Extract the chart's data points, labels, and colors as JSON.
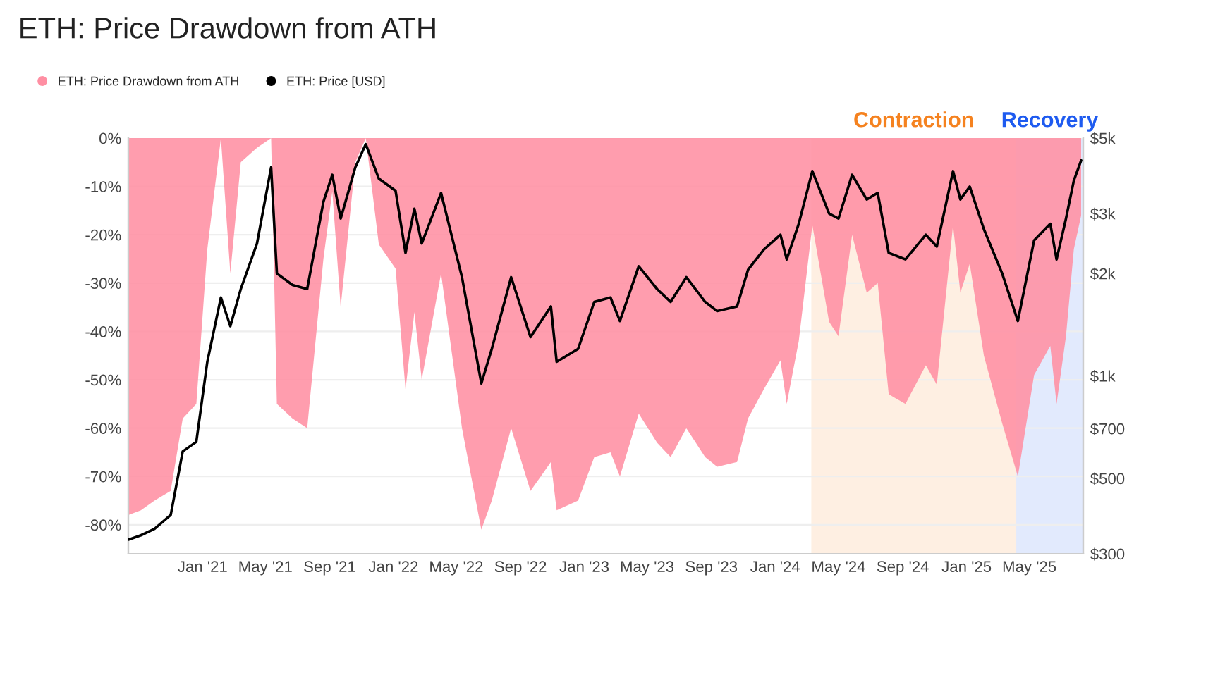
{
  "chart_data": {
    "type": "area",
    "title": "ETH: Price Drawdown from ATH",
    "x": [
      "2020-08-12",
      "2020-09-05",
      "2020-10-01",
      "2020-11-01",
      "2020-11-24",
      "2020-12-20",
      "2021-01-10",
      "2021-02-05",
      "2021-02-23",
      "2021-03-15",
      "2021-04-15",
      "2021-05-12",
      "2021-05-23",
      "2021-06-22",
      "2021-07-20",
      "2021-08-20",
      "2021-09-06",
      "2021-09-22",
      "2021-10-20",
      "2021-11-09",
      "2021-12-04",
      "2022-01-05",
      "2022-01-24",
      "2022-02-10",
      "2022-02-24",
      "2022-04-02",
      "2022-05-12",
      "2022-06-18",
      "2022-07-08",
      "2022-08-14",
      "2022-09-20",
      "2022-10-29",
      "2022-11-09",
      "2022-12-20",
      "2023-01-20",
      "2023-02-20",
      "2023-03-10",
      "2023-04-15",
      "2023-05-20",
      "2023-06-15",
      "2023-07-15",
      "2023-08-20",
      "2023-09-12",
      "2023-10-20",
      "2023-11-10",
      "2023-12-10",
      "2024-01-11",
      "2024-01-23",
      "2024-02-15",
      "2024-03-12",
      "2024-04-13",
      "2024-05-01",
      "2024-05-27",
      "2024-06-24",
      "2024-07-15",
      "2024-08-05",
      "2024-09-06",
      "2024-10-15",
      "2024-11-05",
      "2024-12-06",
      "2024-12-20",
      "2025-01-07",
      "2025-02-03",
      "2025-03-10",
      "2025-04-09",
      "2025-05-10",
      "2025-06-10",
      "2025-06-22",
      "2025-07-10",
      "2025-07-25",
      "2025-08-08"
    ],
    "series": [
      {
        "name": "ETH: Price Drawdown from ATH",
        "color": "#ff8fa3",
        "values": [
          -78,
          -77,
          -75,
          -73,
          -58,
          -55,
          -23,
          0,
          -28,
          -5,
          -2,
          0,
          -55,
          -58,
          -60,
          -25,
          -11,
          -35,
          -5,
          0,
          -22,
          -27,
          -52,
          -36,
          -50,
          -28,
          -60,
          -81,
          -75,
          -60,
          -73,
          -67,
          -77,
          -75,
          -66,
          -65,
          -70,
          -57,
          -63,
          -66,
          -60,
          -66,
          -68,
          -67,
          -58,
          -52,
          -46,
          -55,
          -42,
          -18,
          -38,
          -41,
          -20,
          -32,
          -30,
          -53,
          -55,
          -47,
          -51,
          -18,
          -32,
          -26,
          -45,
          -59,
          -70,
          -49,
          -43,
          -55,
          -41,
          -23,
          -16
        ]
      },
      {
        "name": "ETH: Price [USD]",
        "type": "line",
        "axis": "y2",
        "color": "#000000",
        "values": [
          330,
          340,
          355,
          390,
          600,
          640,
          1100,
          1700,
          1400,
          1800,
          2450,
          4100,
          2000,
          1850,
          1800,
          3250,
          3900,
          2900,
          4100,
          4800,
          3800,
          3500,
          2300,
          3100,
          2450,
          3450,
          1950,
          950,
          1200,
          1950,
          1300,
          1600,
          1100,
          1200,
          1650,
          1700,
          1450,
          2100,
          1800,
          1650,
          1950,
          1650,
          1550,
          1600,
          2050,
          2350,
          2600,
          2200,
          2800,
          4000,
          3000,
          2900,
          3900,
          3300,
          3450,
          2300,
          2200,
          2600,
          2400,
          4000,
          3300,
          3600,
          2700,
          2000,
          1450,
          2500,
          2800,
          2200,
          2900,
          3750,
          4300
        ]
      }
    ],
    "xlim": [
      "2020-08-12",
      "2025-08-12"
    ],
    "xticks": [
      {
        "value": "2021-01-01",
        "label": "Jan '21"
      },
      {
        "value": "2021-05-01",
        "label": "May '21"
      },
      {
        "value": "2021-09-01",
        "label": "Sep '21"
      },
      {
        "value": "2022-01-01",
        "label": "Jan '22"
      },
      {
        "value": "2022-05-01",
        "label": "May '22"
      },
      {
        "value": "2022-09-01",
        "label": "Sep '22"
      },
      {
        "value": "2023-01-01",
        "label": "Jan '23"
      },
      {
        "value": "2023-05-01",
        "label": "May '23"
      },
      {
        "value": "2023-09-01",
        "label": "Sep '23"
      },
      {
        "value": "2024-01-01",
        "label": "Jan '24"
      },
      {
        "value": "2024-05-01",
        "label": "May '24"
      },
      {
        "value": "2024-09-01",
        "label": "Sep '24"
      },
      {
        "value": "2025-01-01",
        "label": "Jan '25"
      },
      {
        "value": "2025-05-01",
        "label": "May '25"
      }
    ],
    "ylim": [
      -86,
      0
    ],
    "yticks": [
      {
        "value": 0,
        "label": "0%"
      },
      {
        "value": -10,
        "label": "-10%"
      },
      {
        "value": -20,
        "label": "-20%"
      },
      {
        "value": -30,
        "label": "-30%"
      },
      {
        "value": -40,
        "label": "-40%"
      },
      {
        "value": -50,
        "label": "-50%"
      },
      {
        "value": -60,
        "label": "-60%"
      },
      {
        "value": -70,
        "label": "-70%"
      },
      {
        "value": -80,
        "label": "-80%"
      }
    ],
    "y2lim": [
      300,
      5000
    ],
    "y2ticks": [
      {
        "value": 300,
        "label": "$300"
      },
      {
        "value": 500,
        "label": "$500"
      },
      {
        "value": 700,
        "label": "$700"
      },
      {
        "value": 1000,
        "label": "$1k"
      },
      {
        "value": 2000,
        "label": "$2k"
      },
      {
        "value": 3000,
        "label": "$3k"
      },
      {
        "value": 5000,
        "label": "$5k"
      }
    ],
    "log": "y2",
    "bands": [
      {
        "axis": "x",
        "from": "2024-03-10",
        "to": "2025-04-06",
        "label": "Contraction",
        "color": "#f5821f"
      },
      {
        "axis": "x",
        "from": "2025-04-06",
        "to": "2025-08-12",
        "label": "Recovery",
        "color": "#1e5bf0"
      }
    ],
    "grid": "y",
    "legend": "top left"
  }
}
